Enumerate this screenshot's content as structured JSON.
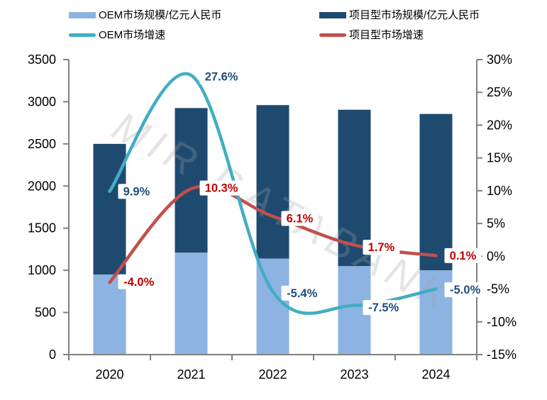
{
  "chart_data": {
    "type": "combo-stacked-bar-line",
    "categories": [
      "2020",
      "2021",
      "2022",
      "2023",
      "2024"
    ],
    "bar_series": [
      {
        "name": "OEM市场规模/亿元人民币",
        "color": "#8DB3E2",
        "values": [
          950,
          1210,
          1140,
          1050,
          1000
        ]
      },
      {
        "name": "项目型市场规模/亿元人民币",
        "color": "#1F4A70",
        "values": [
          1550,
          1715,
          1820,
          1855,
          1855
        ]
      }
    ],
    "line_series": [
      {
        "name": "OEM市场增速",
        "color": "#42ADC2",
        "label_color": "#1F4E79",
        "values": [
          9.9,
          27.6,
          -5.4,
          -7.5,
          -5.0
        ],
        "labels": [
          "9.9%",
          "27.6%",
          "-5.4%",
          "-7.5%",
          "-5.0%"
        ],
        "label_dy": [
          0,
          2,
          2,
          3,
          1
        ]
      },
      {
        "name": "项目型市场增速",
        "color": "#C0504D",
        "label_color": "#C00000",
        "values": [
          -4.0,
          10.3,
          6.1,
          1.7,
          0.1
        ],
        "labels": [
          "-4.0%",
          "10.3%",
          "6.1%",
          "1.7%",
          "0.1%"
        ],
        "label_dy": [
          -1,
          -1,
          3,
          3,
          0
        ]
      }
    ],
    "left_axis": {
      "min": 0,
      "max": 3500,
      "tick_labels": [
        "0",
        "500",
        "1000",
        "1500",
        "2000",
        "2500",
        "3000",
        "3500"
      ]
    },
    "right_axis": {
      "min": -15,
      "max": 30,
      "tick_labels": [
        "-15%",
        "-10%",
        "-5%",
        "0%",
        "5%",
        "10%",
        "15%",
        "20%",
        "25%",
        "30%"
      ]
    },
    "watermark": "MIR DATABANK",
    "axis_color": "#808080",
    "tick_label_color": "#000000",
    "legend_position": "top"
  }
}
